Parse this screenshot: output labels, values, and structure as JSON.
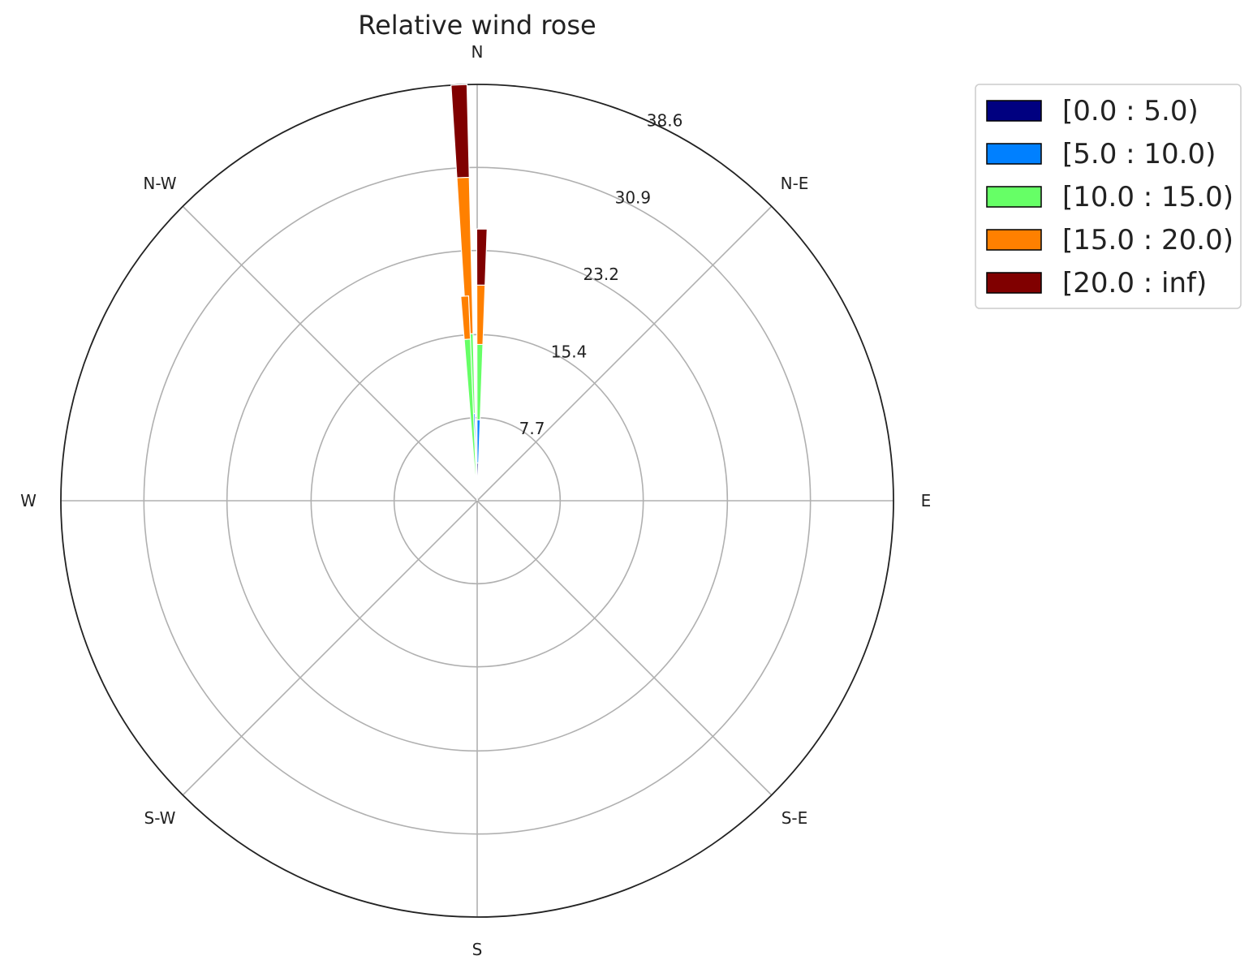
{
  "chart_data": {
    "type": "windrose",
    "title": "Relative wind rose",
    "direction_labels": [
      "E",
      "N-E",
      "N",
      "N-W",
      "W",
      "S-W",
      "S",
      "S-E"
    ],
    "direction_angles_deg": [
      90,
      45,
      0,
      315,
      270,
      225,
      180,
      135
    ],
    "radial_ticks": [
      "7.7",
      "15.4",
      "23.2",
      "30.9",
      "38.6"
    ],
    "radial_tick_values": [
      7.7,
      15.4,
      23.2,
      30.9,
      38.6
    ],
    "r_max": 38.6,
    "grid": true,
    "legend_position": "right",
    "bins": [
      {
        "label": "[0.0 : 5.0)",
        "color": "#000080"
      },
      {
        "label": "[5.0 : 10.0)",
        "color": "#0080ff"
      },
      {
        "label": "[10.0 : 15.0)",
        "color": "#66ff66"
      },
      {
        "label": "[15.0 : 20.0)",
        "color": "#ff8000"
      },
      {
        "label": "[20.0 : inf)",
        "color": "#800000"
      }
    ],
    "sectors": [
      {
        "direction_deg": -2.5,
        "cumulative": [
          3.3,
          8.1,
          15.5,
          30.0,
          38.6
        ]
      },
      {
        "direction_deg": 0.0,
        "cumulative": [
          0.5,
          1.0,
          1.5,
          2.0,
          2.5
        ]
      },
      {
        "direction_deg": 1.0,
        "cumulative": [
          3.5,
          7.5,
          14.5,
          20.0,
          25.2
        ]
      },
      {
        "direction_deg": -3.5,
        "cumulative": [
          0.0,
          0.5,
          15.0,
          19.0,
          19.0
        ]
      }
    ]
  }
}
